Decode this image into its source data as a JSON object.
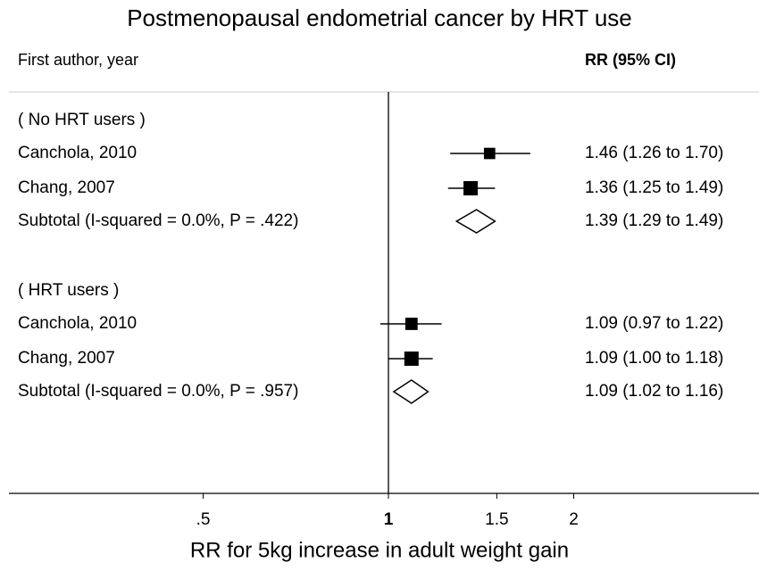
{
  "chart_data": {
    "type": "forest",
    "title": "Postmenopausal endometrial cancer by HRT use",
    "column_labels": [
      "First author, year",
      "RR (95% CI)"
    ],
    "xlabel": "RR for 5kg increase in adult weight gain",
    "log_x": true,
    "xlim": [
      0.25,
      4
    ],
    "xticks": [
      {
        "value": 0.5,
        "label": ".5"
      },
      1,
      1.5,
      2
    ],
    "reference": 1,
    "color": "#000000",
    "groups": [
      {
        "name": "( No HRT users )",
        "studies": [
          {
            "label": "Canchola, 2010",
            "values": [
              1.46,
              1.26,
              1.7
            ],
            "value_label": "1.46 (1.26 to 1.70)"
          },
          {
            "label": "Chang, 2007",
            "values": [
              1.36,
              1.25,
              1.49
            ],
            "value_label": "1.36 (1.25 to 1.49)"
          }
        ],
        "subtotal": {
          "label": "Subtotal  (I-squared = 0.0%, P = .422)",
          "values": [
            1.39,
            1.29,
            1.49
          ],
          "value_label": "1.39 (1.29 to 1.49)"
        }
      },
      {
        "name": "( HRT users )",
        "studies": [
          {
            "label": "Canchola, 2010",
            "values": [
              1.09,
              0.97,
              1.22
            ],
            "value_label": "1.09 (0.97 to 1.22)"
          },
          {
            "label": "Chang, 2007",
            "values": [
              1.09,
              1.0,
              1.18
            ],
            "value_label": "1.09 (1.00 to 1.18)"
          }
        ],
        "subtotal": {
          "label": "Subtotal  (I-squared = 0.0%, P = .957)",
          "values": [
            1.09,
            1.02,
            1.16
          ],
          "value_label": "1.09 (1.02 to 1.16)"
        }
      }
    ]
  }
}
